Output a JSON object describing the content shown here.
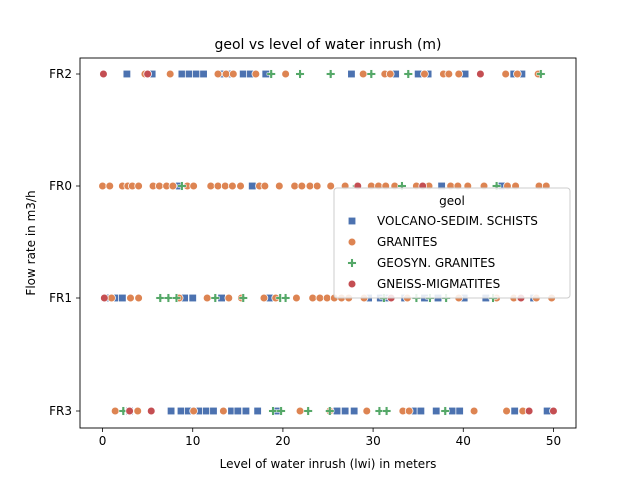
{
  "chart_data": {
    "type": "scatter",
    "title": "geol vs level of water inrush (m)",
    "xlabel": "Level of water inrush (lwi) in meters",
    "ylabel": "Flow rate in m3/h",
    "xlim": [
      -2.5,
      52.5
    ],
    "x_ticks": [
      0,
      10,
      20,
      30,
      40,
      50
    ],
    "categories": [
      "FR2",
      "FR0",
      "FR1",
      "FR3"
    ],
    "grid": false,
    "legend": {
      "title": "geol",
      "placement": "center-right"
    },
    "series": [
      {
        "name": "VOLCANO-SEDIM. SCHISTS",
        "marker": "square",
        "color": "#4c72b0",
        "points": [
          {
            "x": 2.7,
            "y": "FR2"
          },
          {
            "x": 5.5,
            "y": "FR2"
          },
          {
            "x": 8.8,
            "y": "FR2"
          },
          {
            "x": 9.6,
            "y": "FR2"
          },
          {
            "x": 10.4,
            "y": "FR2"
          },
          {
            "x": 11.2,
            "y": "FR2"
          },
          {
            "x": 13.3,
            "y": "FR2"
          },
          {
            "x": 14.1,
            "y": "FR2"
          },
          {
            "x": 15.6,
            "y": "FR2"
          },
          {
            "x": 16.4,
            "y": "FR2"
          },
          {
            "x": 18.1,
            "y": "FR2"
          },
          {
            "x": 27.6,
            "y": "FR2"
          },
          {
            "x": 32.5,
            "y": "FR2"
          },
          {
            "x": 35.0,
            "y": "FR2"
          },
          {
            "x": 36.1,
            "y": "FR2"
          },
          {
            "x": 38.0,
            "y": "FR2"
          },
          {
            "x": 40.2,
            "y": "FR2"
          },
          {
            "x": 45.6,
            "y": "FR2"
          },
          {
            "x": 46.5,
            "y": "FR2"
          },
          {
            "x": 8.5,
            "y": "FR0"
          },
          {
            "x": 16.6,
            "y": "FR0"
          },
          {
            "x": 37.6,
            "y": "FR0"
          },
          {
            "x": 44.3,
            "y": "FR0"
          },
          {
            "x": 0.3,
            "y": "FR1"
          },
          {
            "x": 1.4,
            "y": "FR1"
          },
          {
            "x": 2.2,
            "y": "FR1"
          },
          {
            "x": 9.1,
            "y": "FR1"
          },
          {
            "x": 10.0,
            "y": "FR1"
          },
          {
            "x": 13.2,
            "y": "FR1"
          },
          {
            "x": 18.5,
            "y": "FR1"
          },
          {
            "x": 29.5,
            "y": "FR1"
          },
          {
            "x": 30.8,
            "y": "FR1"
          },
          {
            "x": 31.6,
            "y": "FR1"
          },
          {
            "x": 33.5,
            "y": "FR1"
          },
          {
            "x": 35.7,
            "y": "FR1"
          },
          {
            "x": 37.2,
            "y": "FR1"
          },
          {
            "x": 40.1,
            "y": "FR1"
          },
          {
            "x": 42.5,
            "y": "FR1"
          },
          {
            "x": 47.8,
            "y": "FR1"
          },
          {
            "x": 3.0,
            "y": "FR3"
          },
          {
            "x": 7.6,
            "y": "FR3"
          },
          {
            "x": 8.7,
            "y": "FR3"
          },
          {
            "x": 9.5,
            "y": "FR3"
          },
          {
            "x": 10.8,
            "y": "FR3"
          },
          {
            "x": 11.5,
            "y": "FR3"
          },
          {
            "x": 12.3,
            "y": "FR3"
          },
          {
            "x": 14.3,
            "y": "FR3"
          },
          {
            "x": 15.0,
            "y": "FR3"
          },
          {
            "x": 15.9,
            "y": "FR3"
          },
          {
            "x": 17.2,
            "y": "FR3"
          },
          {
            "x": 19.4,
            "y": "FR3"
          },
          {
            "x": 26.0,
            "y": "FR3"
          },
          {
            "x": 26.9,
            "y": "FR3"
          },
          {
            "x": 27.9,
            "y": "FR3"
          },
          {
            "x": 34.6,
            "y": "FR3"
          },
          {
            "x": 35.3,
            "y": "FR3"
          },
          {
            "x": 37.0,
            "y": "FR3"
          },
          {
            "x": 38.8,
            "y": "FR3"
          },
          {
            "x": 39.6,
            "y": "FR3"
          },
          {
            "x": 45.7,
            "y": "FR3"
          },
          {
            "x": 49.3,
            "y": "FR3"
          }
        ]
      },
      {
        "name": "GRANITES",
        "marker": "circle",
        "color": "#dd8452",
        "points": [
          {
            "x": 4.7,
            "y": "FR2"
          },
          {
            "x": 7.5,
            "y": "FR2"
          },
          {
            "x": 12.8,
            "y": "FR2"
          },
          {
            "x": 13.7,
            "y": "FR2"
          },
          {
            "x": 14.5,
            "y": "FR2"
          },
          {
            "x": 17.0,
            "y": "FR2"
          },
          {
            "x": 20.3,
            "y": "FR2"
          },
          {
            "x": 28.9,
            "y": "FR2"
          },
          {
            "x": 31.3,
            "y": "FR2"
          },
          {
            "x": 31.9,
            "y": "FR2"
          },
          {
            "x": 35.7,
            "y": "FR2"
          },
          {
            "x": 37.8,
            "y": "FR2"
          },
          {
            "x": 38.4,
            "y": "FR2"
          },
          {
            "x": 39.5,
            "y": "FR2"
          },
          {
            "x": 44.7,
            "y": "FR2"
          },
          {
            "x": 46.0,
            "y": "FR2"
          },
          {
            "x": 48.3,
            "y": "FR2"
          },
          {
            "x": 0.0,
            "y": "FR0"
          },
          {
            "x": 0.8,
            "y": "FR0"
          },
          {
            "x": 2.2,
            "y": "FR0"
          },
          {
            "x": 2.8,
            "y": "FR0"
          },
          {
            "x": 3.3,
            "y": "FR0"
          },
          {
            "x": 4.0,
            "y": "FR0"
          },
          {
            "x": 5.6,
            "y": "FR0"
          },
          {
            "x": 6.3,
            "y": "FR0"
          },
          {
            "x": 7.1,
            "y": "FR0"
          },
          {
            "x": 7.8,
            "y": "FR0"
          },
          {
            "x": 9.4,
            "y": "FR0"
          },
          {
            "x": 10.1,
            "y": "FR0"
          },
          {
            "x": 12.0,
            "y": "FR0"
          },
          {
            "x": 12.8,
            "y": "FR0"
          },
          {
            "x": 13.6,
            "y": "FR0"
          },
          {
            "x": 14.4,
            "y": "FR0"
          },
          {
            "x": 15.3,
            "y": "FR0"
          },
          {
            "x": 17.4,
            "y": "FR0"
          },
          {
            "x": 18.0,
            "y": "FR0"
          },
          {
            "x": 19.6,
            "y": "FR0"
          },
          {
            "x": 21.3,
            "y": "FR0"
          },
          {
            "x": 22.1,
            "y": "FR0"
          },
          {
            "x": 23.0,
            "y": "FR0"
          },
          {
            "x": 23.8,
            "y": "FR0"
          },
          {
            "x": 25.3,
            "y": "FR0"
          },
          {
            "x": 26.9,
            "y": "FR0"
          },
          {
            "x": 29.8,
            "y": "FR0"
          },
          {
            "x": 30.6,
            "y": "FR0"
          },
          {
            "x": 31.4,
            "y": "FR0"
          },
          {
            "x": 32.4,
            "y": "FR0"
          },
          {
            "x": 34.8,
            "y": "FR0"
          },
          {
            "x": 36.2,
            "y": "FR0"
          },
          {
            "x": 38.6,
            "y": "FR0"
          },
          {
            "x": 39.4,
            "y": "FR0"
          },
          {
            "x": 40.5,
            "y": "FR0"
          },
          {
            "x": 42.3,
            "y": "FR0"
          },
          {
            "x": 44.9,
            "y": "FR0"
          },
          {
            "x": 45.8,
            "y": "FR0"
          },
          {
            "x": 48.4,
            "y": "FR0"
          },
          {
            "x": 49.2,
            "y": "FR0"
          },
          {
            "x": 1.0,
            "y": "FR1"
          },
          {
            "x": 3.1,
            "y": "FR1"
          },
          {
            "x": 4.0,
            "y": "FR1"
          },
          {
            "x": 8.5,
            "y": "FR1"
          },
          {
            "x": 11.6,
            "y": "FR1"
          },
          {
            "x": 14.0,
            "y": "FR1"
          },
          {
            "x": 15.4,
            "y": "FR1"
          },
          {
            "x": 17.9,
            "y": "FR1"
          },
          {
            "x": 19.2,
            "y": "FR1"
          },
          {
            "x": 21.5,
            "y": "FR1"
          },
          {
            "x": 23.3,
            "y": "FR1"
          },
          {
            "x": 24.1,
            "y": "FR1"
          },
          {
            "x": 24.9,
            "y": "FR1"
          },
          {
            "x": 25.7,
            "y": "FR1"
          },
          {
            "x": 26.5,
            "y": "FR1"
          },
          {
            "x": 27.3,
            "y": "FR1"
          },
          {
            "x": 29.0,
            "y": "FR1"
          },
          {
            "x": 33.8,
            "y": "FR1"
          },
          {
            "x": 39.5,
            "y": "FR1"
          },
          {
            "x": 43.7,
            "y": "FR1"
          },
          {
            "x": 45.6,
            "y": "FR1"
          },
          {
            "x": 46.3,
            "y": "FR1"
          },
          {
            "x": 48.1,
            "y": "FR1"
          },
          {
            "x": 49.8,
            "y": "FR1"
          },
          {
            "x": 1.4,
            "y": "FR3"
          },
          {
            "x": 3.9,
            "y": "FR3"
          },
          {
            "x": 10.1,
            "y": "FR3"
          },
          {
            "x": 13.4,
            "y": "FR3"
          },
          {
            "x": 21.9,
            "y": "FR3"
          },
          {
            "x": 25.2,
            "y": "FR3"
          },
          {
            "x": 29.3,
            "y": "FR3"
          },
          {
            "x": 33.3,
            "y": "FR3"
          },
          {
            "x": 34.0,
            "y": "FR3"
          },
          {
            "x": 41.2,
            "y": "FR3"
          },
          {
            "x": 44.8,
            "y": "FR3"
          },
          {
            "x": 46.6,
            "y": "FR3"
          }
        ]
      },
      {
        "name": "GEOSYN. GRANITES",
        "marker": "plus",
        "color": "#55a868",
        "points": [
          {
            "x": 18.7,
            "y": "FR2"
          },
          {
            "x": 21.9,
            "y": "FR2"
          },
          {
            "x": 25.3,
            "y": "FR2"
          },
          {
            "x": 29.8,
            "y": "FR2"
          },
          {
            "x": 33.9,
            "y": "FR2"
          },
          {
            "x": 48.6,
            "y": "FR2"
          },
          {
            "x": 8.8,
            "y": "FR0"
          },
          {
            "x": 28.2,
            "y": "FR0"
          },
          {
            "x": 33.2,
            "y": "FR0"
          },
          {
            "x": 43.7,
            "y": "FR0"
          },
          {
            "x": 6.4,
            "y": "FR1"
          },
          {
            "x": 7.3,
            "y": "FR1"
          },
          {
            "x": 8.2,
            "y": "FR1"
          },
          {
            "x": 12.5,
            "y": "FR1"
          },
          {
            "x": 15.6,
            "y": "FR1"
          },
          {
            "x": 19.7,
            "y": "FR1"
          },
          {
            "x": 20.3,
            "y": "FR1"
          },
          {
            "x": 31.2,
            "y": "FR1"
          },
          {
            "x": 34.8,
            "y": "FR1"
          },
          {
            "x": 36.3,
            "y": "FR1"
          },
          {
            "x": 38.1,
            "y": "FR1"
          },
          {
            "x": 43.3,
            "y": "FR1"
          },
          {
            "x": 2.3,
            "y": "FR3"
          },
          {
            "x": 18.9,
            "y": "FR3"
          },
          {
            "x": 19.8,
            "y": "FR3"
          },
          {
            "x": 22.8,
            "y": "FR3"
          },
          {
            "x": 25.2,
            "y": "FR3"
          },
          {
            "x": 30.7,
            "y": "FR3"
          },
          {
            "x": 31.5,
            "y": "FR3"
          },
          {
            "x": 38.0,
            "y": "FR3"
          }
        ]
      },
      {
        "name": "GNEISS-MIGMATITES",
        "marker": "circle",
        "color": "#c44e52",
        "points": [
          {
            "x": 0.1,
            "y": "FR2"
          },
          {
            "x": 5.0,
            "y": "FR2"
          },
          {
            "x": 41.9,
            "y": "FR2"
          },
          {
            "x": 28.3,
            "y": "FR0"
          },
          {
            "x": 35.5,
            "y": "FR0"
          },
          {
            "x": 0.2,
            "y": "FR1"
          },
          {
            "x": 32.0,
            "y": "FR1"
          },
          {
            "x": 46.4,
            "y": "FR1"
          },
          {
            "x": 3.0,
            "y": "FR3"
          },
          {
            "x": 5.4,
            "y": "FR3"
          },
          {
            "x": 47.3,
            "y": "FR3"
          },
          {
            "x": 50.0,
            "y": "FR3"
          }
        ]
      }
    ]
  }
}
